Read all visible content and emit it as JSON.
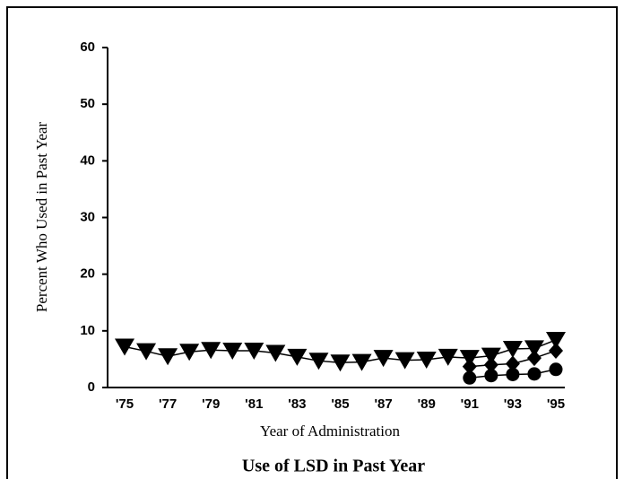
{
  "chart_data": {
    "type": "line",
    "title": "Use of LSD in Past Year",
    "xlabel": "Year of Administration",
    "ylabel": "Percent Who Used in Past Year",
    "categories": [
      "'75",
      null,
      "'77",
      null,
      "'79",
      null,
      "'81",
      null,
      "'83",
      null,
      "'85",
      null,
      "'87",
      null,
      "'89",
      null,
      "'91",
      null,
      "'93",
      null,
      "'95"
    ],
    "series": [
      {
        "color": "#000000",
        "marker": "triangle-down",
        "values": [
          7.2,
          6.4,
          5.5,
          6.3,
          6.6,
          6.5,
          6.5,
          6.1,
          5.4,
          4.7,
          4.4,
          4.5,
          5.2,
          4.8,
          4.9,
          5.4,
          5.2,
          5.6,
          6.8,
          6.9,
          8.4
        ]
      },
      {
        "color": "#000000",
        "marker": "diamond",
        "values": [
          null,
          null,
          null,
          null,
          null,
          null,
          null,
          null,
          null,
          null,
          null,
          null,
          null,
          null,
          null,
          null,
          3.7,
          4.0,
          4.2,
          5.2,
          6.5
        ]
      },
      {
        "color": "#000000",
        "marker": "circle",
        "values": [
          null,
          null,
          null,
          null,
          null,
          null,
          null,
          null,
          null,
          null,
          null,
          null,
          null,
          null,
          null,
          null,
          1.7,
          2.1,
          2.3,
          2.4,
          3.2
        ]
      }
    ],
    "ylim": [
      0,
      60
    ],
    "yticks": [
      0,
      10,
      20,
      30,
      40,
      50,
      60
    ]
  }
}
